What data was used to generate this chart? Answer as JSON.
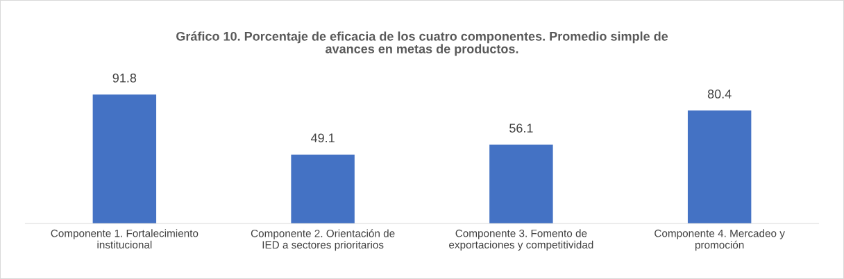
{
  "chart_data": {
    "type": "bar",
    "title": "Gráfico 10. Porcentaje de eficacia de los cuatro componentes. Promedio simple de\navances en metas de productos.",
    "categories": [
      "Componente 1. Fortalecimiento\ninstitucional",
      "Componente 2. Orientación de\nIED a sectores prioritarios",
      "Componente 3. Fomento de\nexportaciones y competitividad",
      "Componente 4. Mercadeo y\npromoción"
    ],
    "values": [
      91.8,
      49.1,
      56.1,
      80.4
    ],
    "color": "#4472c4",
    "data_labels": true,
    "grid": false,
    "legend": false
  }
}
